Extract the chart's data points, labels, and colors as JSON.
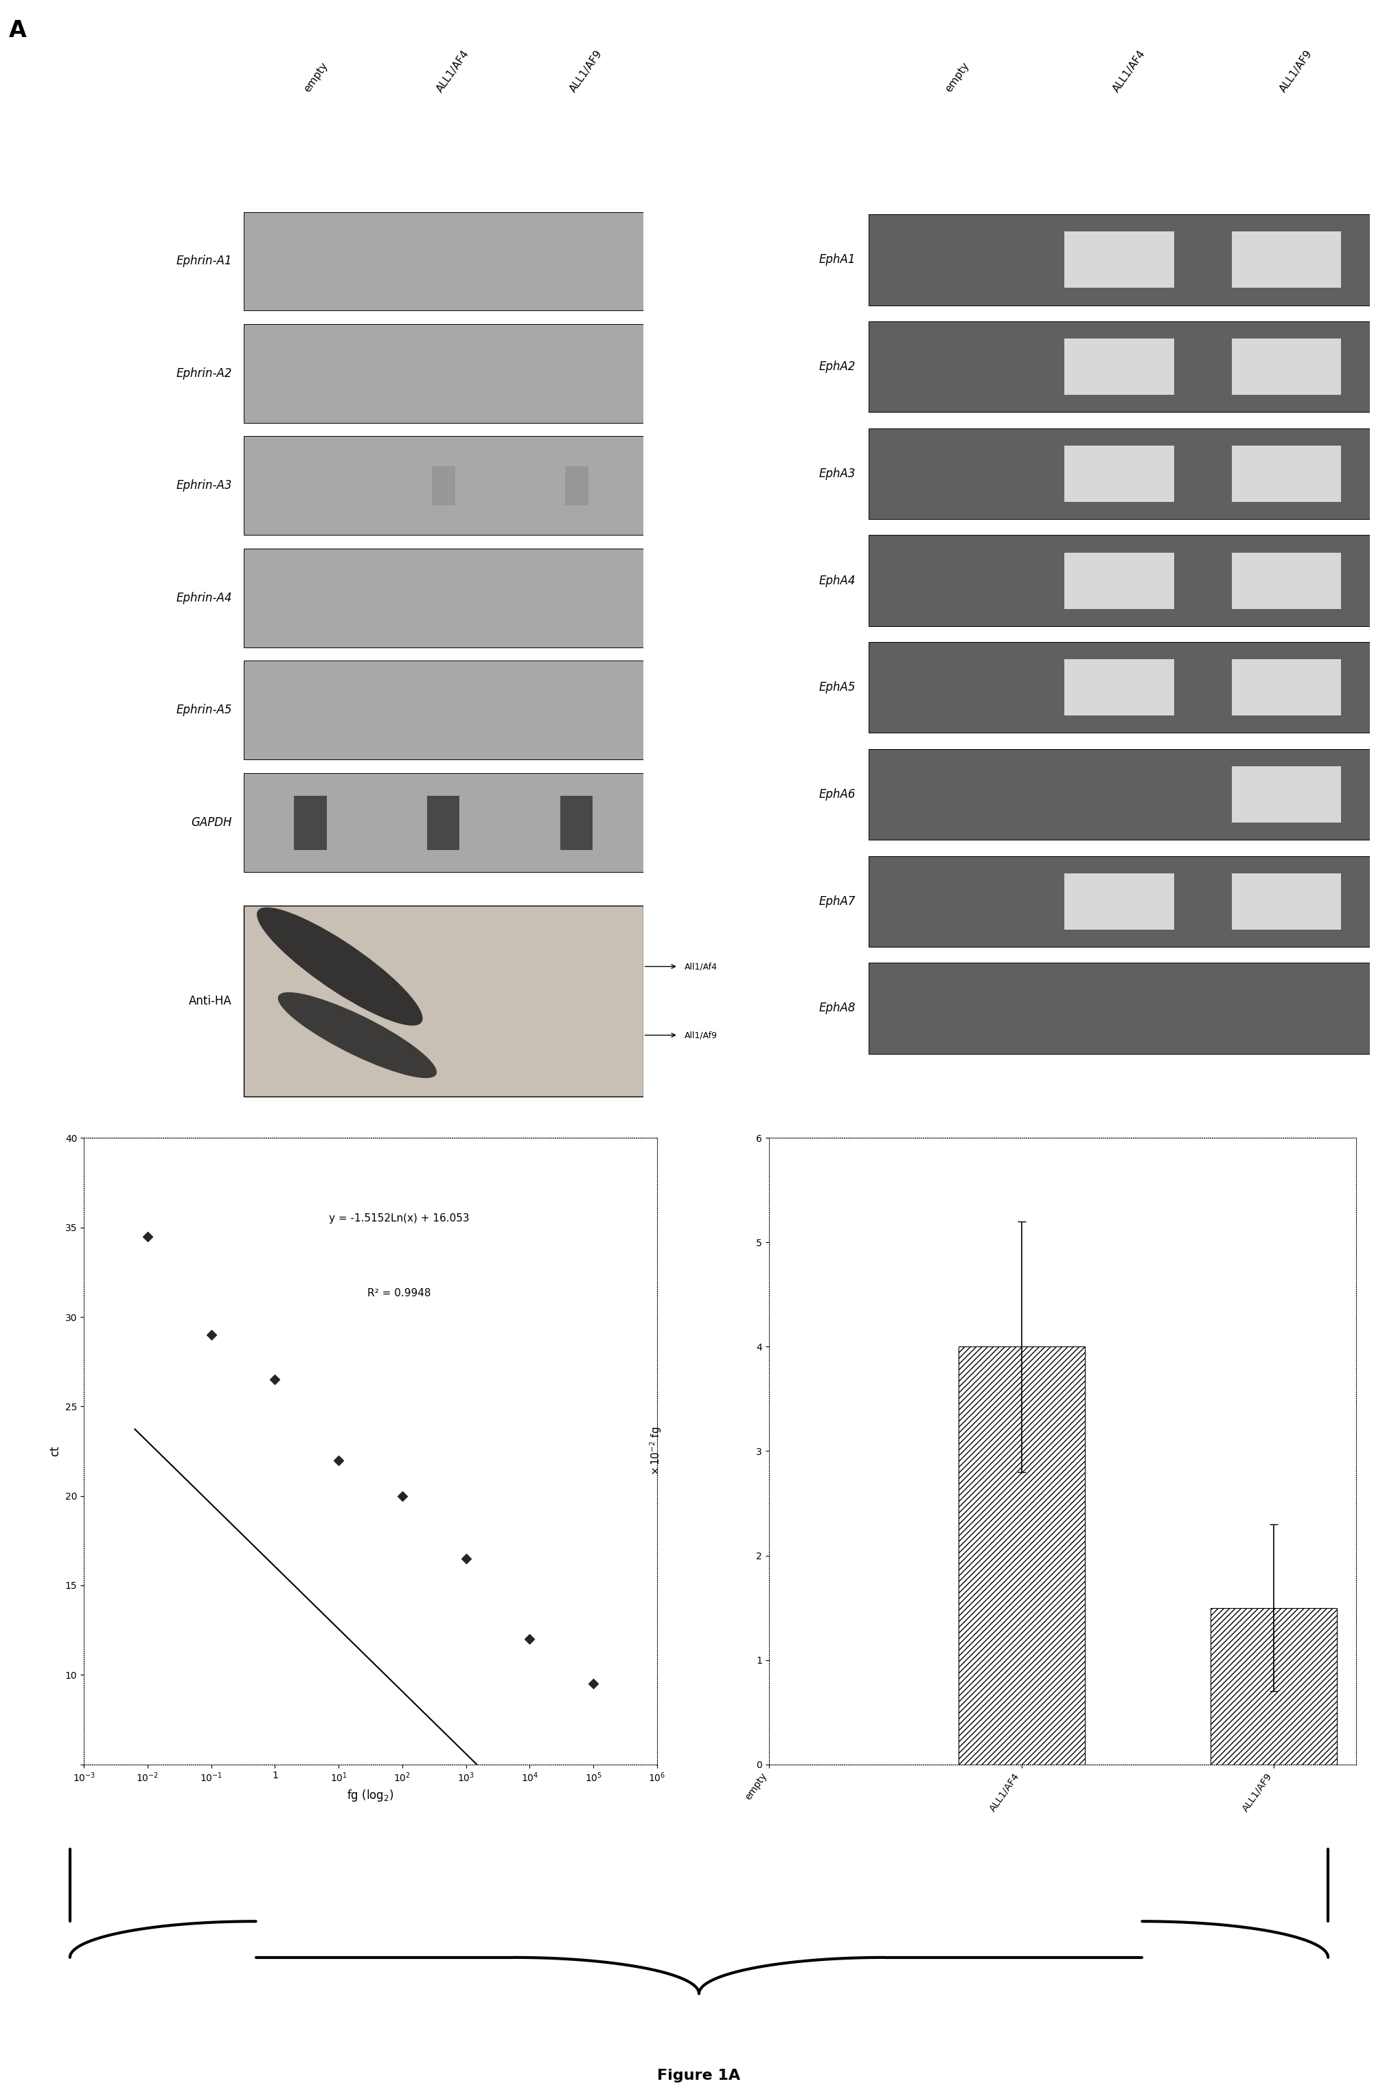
{
  "left_gel_labels": [
    "Ephrin-A1",
    "Ephrin-A2",
    "Ephrin-A3",
    "Ephrin-A4",
    "Ephrin-A5",
    "GAPDH"
  ],
  "right_gel_labels": [
    "EphA1",
    "EphA2",
    "EphA3",
    "EphA4",
    "EphA5",
    "EphA6",
    "EphA7",
    "EphA8"
  ],
  "col_headers": [
    "empty",
    "ALL1/AF4",
    "ALL1/AF9"
  ],
  "panel_label": "A",
  "anti_ha_label": "Anti-HA",
  "anti_ha_arrows": [
    "All1/Af4",
    "All1/Af9"
  ],
  "left_gel_bg": "#a8a8a8",
  "right_gel_bg_dark": "#606060",
  "right_gel_bg_bands": "#d8d8d8",
  "gapdh_band_color": "#484848",
  "anti_ha_bg": "#d0c8c0",
  "scatter_equation": "y = -1.5152Ln(x) + 16.053",
  "scatter_r2": "R² = 0.9948",
  "scatter_xlabel": "fg (log₂)",
  "scatter_ylabel": "ct",
  "scatter_x_vals": [
    -2,
    -1,
    0,
    1,
    2,
    3,
    4,
    5
  ],
  "scatter_y_vals": [
    34.5,
    29.0,
    26.5,
    22.0,
    20.0,
    16.5,
    12.0,
    9.5
  ],
  "bar_categories": [
    "empty",
    "ALL1/AF4",
    "ALL1/AF9"
  ],
  "bar_values": [
    0,
    4.0,
    1.5
  ],
  "bar_errors": [
    0,
    1.2,
    0.8
  ],
  "bar_ylabel": "× 10⁻² fg",
  "bar_ylim": [
    0,
    6
  ],
  "figure_label": "Figure 1A"
}
